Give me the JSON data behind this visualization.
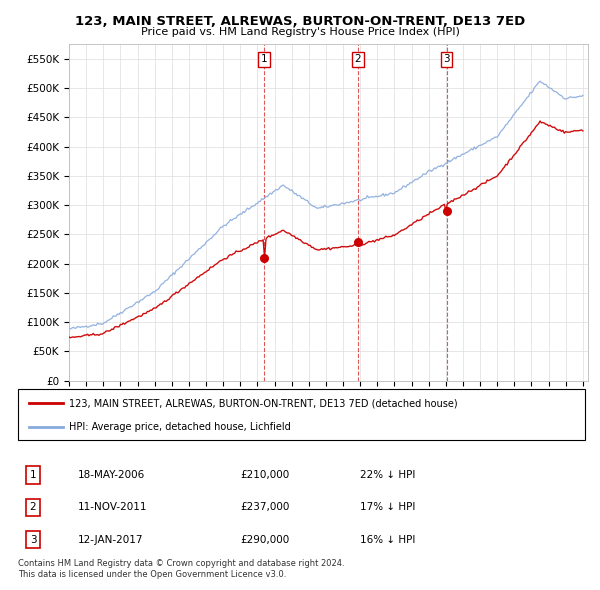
{
  "title": "123, MAIN STREET, ALREWAS, BURTON-ON-TRENT, DE13 7ED",
  "subtitle": "Price paid vs. HM Land Registry's House Price Index (HPI)",
  "ylabel_ticks": [
    "£0",
    "£50K",
    "£100K",
    "£150K",
    "£200K",
    "£250K",
    "£300K",
    "£350K",
    "£400K",
    "£450K",
    "£500K",
    "£550K"
  ],
  "ytick_values": [
    0,
    50000,
    100000,
    150000,
    200000,
    250000,
    300000,
    350000,
    400000,
    450000,
    500000,
    550000
  ],
  "ylim": [
    0,
    575000
  ],
  "legend_line1": "123, MAIN STREET, ALREWAS, BURTON-ON-TRENT, DE13 7ED (detached house)",
  "legend_line2": "HPI: Average price, detached house, Lichfield",
  "line1_color": "#cc0000",
  "line2_color": "#88aadd",
  "sale1_date": "18-MAY-2006",
  "sale1_price": 210000,
  "sale1_pct": "22% ↓ HPI",
  "sale1_year": 2006.38,
  "sale2_date": "11-NOV-2011",
  "sale2_price": 237000,
  "sale2_pct": "17% ↓ HPI",
  "sale2_year": 2011.86,
  "sale3_date": "12-JAN-2017",
  "sale3_price": 290000,
  "sale3_pct": "16% ↓ HPI",
  "sale3_year": 2017.04,
  "footer": "Contains HM Land Registry data © Crown copyright and database right 2024.\nThis data is licensed under the Open Government Licence v3.0.",
  "background_color": "#ffffff",
  "grid_color": "#dddddd"
}
